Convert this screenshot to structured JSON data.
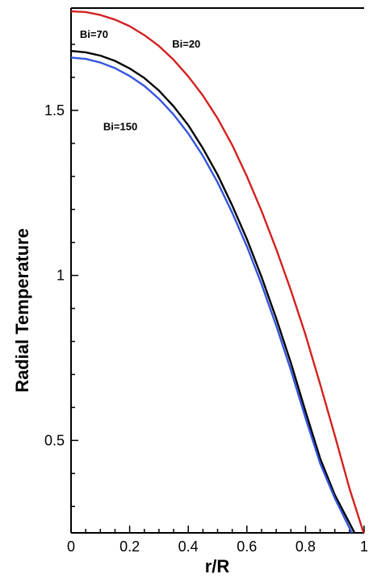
{
  "chart_data": {
    "type": "line",
    "title": "",
    "xlabel": "r/R",
    "ylabel": "Radial Temperature",
    "xlim": [
      0,
      1
    ],
    "ylim": [
      0.22,
      1.81
    ],
    "grid": false,
    "x_ticks": [
      0,
      0.2,
      0.4,
      0.6,
      0.8,
      1
    ],
    "x_tick_labels": [
      "0",
      "0.2",
      "0.4",
      "0.6",
      "0.8",
      "1"
    ],
    "y_ticks": [
      0.5,
      1,
      1.5
    ],
    "y_tick_labels": [
      "0.5",
      "1",
      "1.5"
    ],
    "annotations": [
      {
        "text": "Bi=70",
        "x": 0.03,
        "y": 1.72
      },
      {
        "text": "Bi=20",
        "x": 0.345,
        "y": 1.69
      },
      {
        "text": "Bi=150",
        "x": 0.11,
        "y": 1.44
      }
    ],
    "series": [
      {
        "color": "#d42020",
        "x": [
          0,
          0.05,
          0.1,
          0.15,
          0.2,
          0.25,
          0.3,
          0.35,
          0.4,
          0.45,
          0.5,
          0.55,
          0.6,
          0.65,
          0.7,
          0.75,
          0.8,
          0.85,
          0.9,
          0.95,
          1.0
        ],
        "y": [
          1.8,
          1.798,
          1.789,
          1.775,
          1.755,
          1.728,
          1.695,
          1.653,
          1.603,
          1.545,
          1.476,
          1.395,
          1.3,
          1.195,
          1.08,
          0.955,
          0.82,
          0.67,
          0.515,
          0.355,
          0.215
        ]
      },
      {
        "color": "#000000",
        "x": [
          0,
          0.05,
          0.1,
          0.15,
          0.2,
          0.25,
          0.3,
          0.35,
          0.4,
          0.45,
          0.5,
          0.55,
          0.6,
          0.65,
          0.7,
          0.75,
          0.8,
          0.85,
          0.9,
          0.95,
          0.97
        ],
        "y": [
          1.68,
          1.676,
          1.666,
          1.65,
          1.627,
          1.598,
          1.56,
          1.512,
          1.455,
          1.385,
          1.305,
          1.212,
          1.11,
          0.995,
          0.87,
          0.735,
          0.588,
          0.445,
          0.335,
          0.25,
          0.215
        ]
      },
      {
        "color": "#3355dd",
        "x": [
          0,
          0.05,
          0.1,
          0.15,
          0.2,
          0.25,
          0.3,
          0.35,
          0.4,
          0.45,
          0.5,
          0.55,
          0.6,
          0.65,
          0.7,
          0.75,
          0.8,
          0.85,
          0.9,
          0.95,
          0.96
        ],
        "y": [
          1.66,
          1.656,
          1.645,
          1.628,
          1.604,
          1.574,
          1.535,
          1.487,
          1.43,
          1.362,
          1.282,
          1.19,
          1.088,
          0.973,
          0.848,
          0.713,
          0.568,
          0.43,
          0.325,
          0.235,
          0.215
        ]
      }
    ]
  }
}
